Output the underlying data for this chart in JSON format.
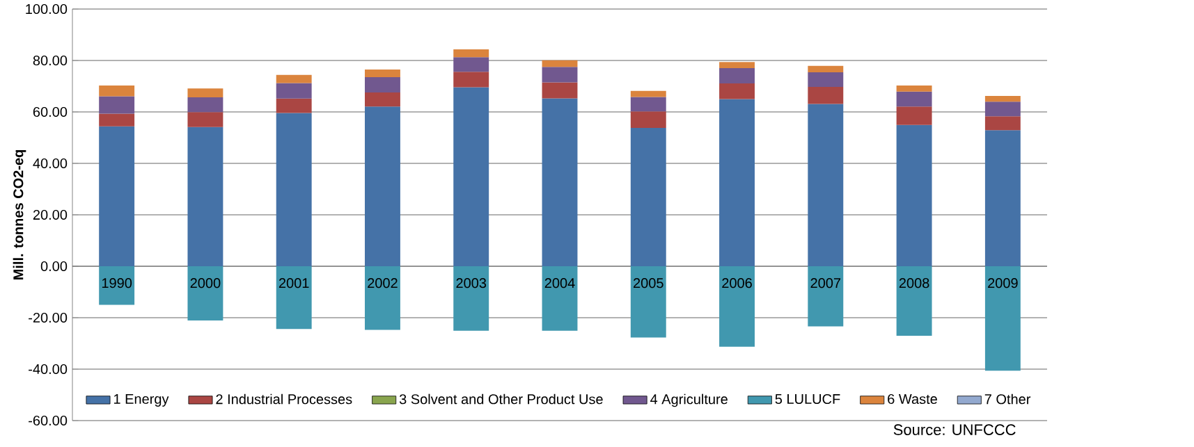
{
  "chart_data": {
    "type": "bar",
    "stacked": true,
    "ylabel": "Mill. tonnes  CO2-eq",
    "categories": [
      "1990",
      "2000",
      "2001",
      "2002",
      "2003",
      "2004",
      "2005",
      "2006",
      "2007",
      "2008",
      "2009"
    ],
    "series": [
      {
        "name": "1 Energy",
        "color": "#4572a7",
        "values": [
          54.4,
          54.1,
          59.6,
          62.1,
          69.6,
          65.3,
          53.8,
          65.0,
          63.1,
          54.9,
          52.9
        ]
      },
      {
        "name": "2 Industrial Processes",
        "color": "#aa4643",
        "values": [
          4.9,
          5.8,
          5.6,
          5.5,
          6.0,
          6.2,
          6.4,
          6.1,
          6.6,
          7.2,
          5.4
        ]
      },
      {
        "name": "3 Solvent and Other Product Use",
        "color": "#89a54e",
        "values": [
          0,
          0,
          0,
          0,
          0,
          0,
          0,
          0,
          0,
          0,
          0
        ]
      },
      {
        "name": "4 Agriculture",
        "color": "#71588f",
        "values": [
          6.8,
          5.8,
          6.0,
          5.9,
          5.7,
          6.0,
          5.6,
          5.9,
          5.7,
          5.8,
          5.7
        ]
      },
      {
        "name": "5 LULUCF",
        "color": "#4198af",
        "values": [
          -15.0,
          -21.1,
          -24.4,
          -24.7,
          -25.1,
          -25.1,
          -27.7,
          -31.3,
          -23.4,
          -27.0,
          -40.6
        ]
      },
      {
        "name": "6 Waste",
        "color": "#db843d",
        "values": [
          4.2,
          3.4,
          3.2,
          3.0,
          3.0,
          2.6,
          2.4,
          2.4,
          2.5,
          2.4,
          2.2
        ]
      },
      {
        "name": "7 Other",
        "color": "#93a9cf",
        "values": [
          0,
          0,
          0,
          0,
          0,
          0,
          0,
          0,
          0,
          0,
          0
        ]
      }
    ],
    "ylim": [
      -60,
      100
    ],
    "yticks": [
      {
        "value": -60,
        "label": "-60.00"
      },
      {
        "value": -40,
        "label": "-40.00"
      },
      {
        "value": -20,
        "label": "-20.00"
      },
      {
        "value": 0,
        "label": "0.00"
      },
      {
        "value": 20,
        "label": "20.00"
      },
      {
        "value": 40,
        "label": "40.00"
      },
      {
        "value": 60,
        "label": "60.00"
      },
      {
        "value": 80,
        "label": "80.00"
      },
      {
        "value": 100,
        "label": "100.00"
      }
    ],
    "grid": "y",
    "legend": "bottom",
    "annotations": [
      "Source: UNFCCC"
    ]
  }
}
